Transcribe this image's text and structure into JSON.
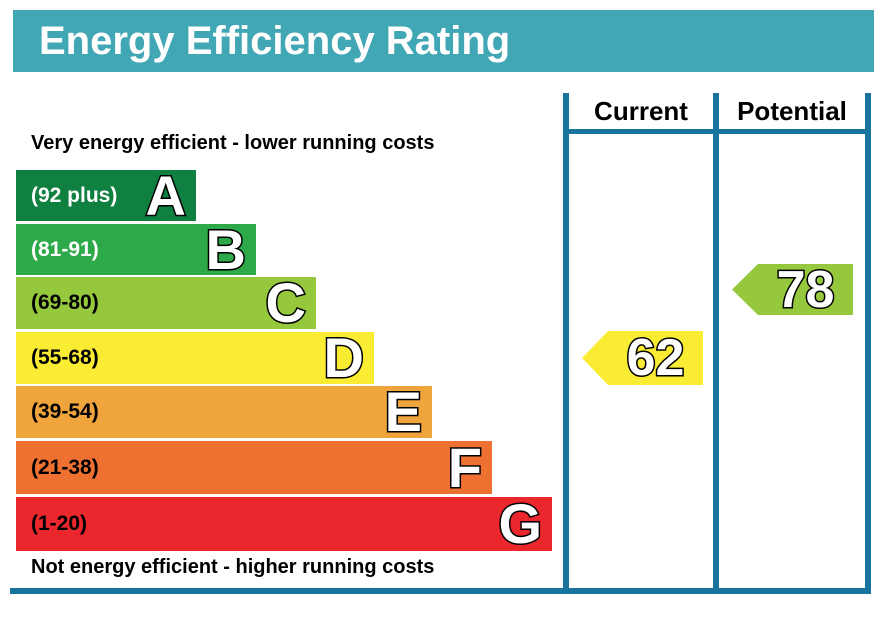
{
  "title": "Energy Efficiency Rating",
  "notes": {
    "top": "Very energy efficient - lower running costs",
    "bottom": "Not energy efficient - higher running costs"
  },
  "columns": {
    "current_label": "Current",
    "potential_label": "Potential"
  },
  "bands": [
    {
      "letter": "A",
      "range": "(92 plus)",
      "color": "#108040",
      "text_color": "#ffffff"
    },
    {
      "letter": "B",
      "range": "(81-91)",
      "color": "#2ea949",
      "text_color": "#ffffff"
    },
    {
      "letter": "C",
      "range": "(69-80)",
      "color": "#95c83c",
      "text_color": "#000000"
    },
    {
      "letter": "D",
      "range": "(55-68)",
      "color": "#f9ec33",
      "text_color": "#000000"
    },
    {
      "letter": "E",
      "range": "(39-54)",
      "color": "#f0a43c",
      "text_color": "#000000"
    },
    {
      "letter": "F",
      "range": "(21-38)",
      "color": "#ee7132",
      "text_color": "#000000"
    },
    {
      "letter": "G",
      "range": "(1-20)",
      "color": "#e9272d",
      "text_color": "#000000"
    }
  ],
  "ratings": {
    "current": {
      "value": "62",
      "band": "D",
      "color": "#f9ec33"
    },
    "potential": {
      "value": "78",
      "band": "C",
      "color": "#95c83c"
    }
  },
  "colors": {
    "header_bg": "#41a7b4",
    "line": "#19749d"
  },
  "chart_data": {
    "type": "bar",
    "title": "Energy Efficiency Rating",
    "categories": [
      "A",
      "B",
      "C",
      "D",
      "E",
      "F",
      "G"
    ],
    "band_ranges": [
      "92 plus",
      "81-91",
      "69-80",
      "55-68",
      "39-54",
      "21-38",
      "1-20"
    ],
    "band_colors": [
      "#108040",
      "#2ea949",
      "#95c83c",
      "#f9ec33",
      "#f0a43c",
      "#ee7132",
      "#e9272d"
    ],
    "bar_lengths_relative": [
      180,
      240,
      300,
      358,
      416,
      476,
      536
    ],
    "annotations": [
      "Very energy efficient - lower running costs",
      "Not energy efficient - higher running costs"
    ],
    "series": [
      {
        "name": "Current",
        "value": 62,
        "band": "D"
      },
      {
        "name": "Potential",
        "value": 78,
        "band": "C"
      }
    ],
    "value_range": [
      1,
      100
    ],
    "legend_position": "columns-top-right",
    "grid": false
  }
}
